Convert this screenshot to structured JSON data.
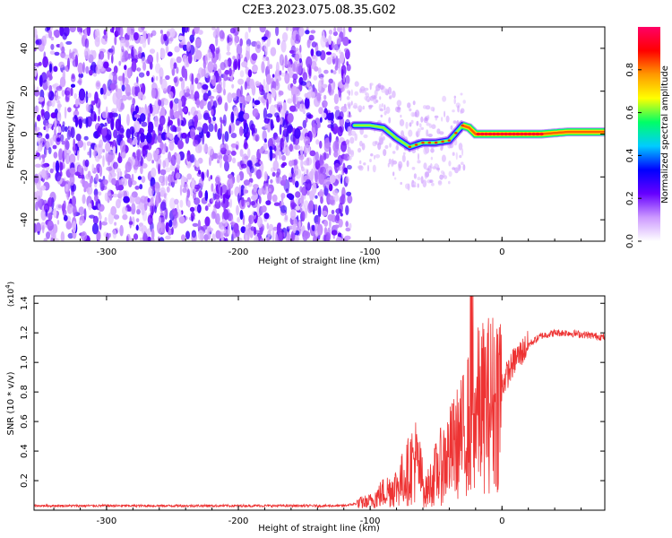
{
  "title": "C2E3.2023.075.08.35.G02",
  "chart_data": [
    {
      "type": "heatmap",
      "xlabel": "Height of straight line (km)",
      "ylabel": "Frequency (Hz)",
      "xlim": [
        -355,
        78
      ],
      "ylim": [
        -50,
        50
      ],
      "xticks": [
        -300,
        -200,
        -100,
        0
      ],
      "yticks": [
        -40,
        -20,
        0,
        20,
        40
      ],
      "colorbar": {
        "label": "Normalized spectral amplitude",
        "range": [
          0.0,
          1.0
        ],
        "ticks": [
          "0.0",
          "0.2",
          "0.4",
          "0.6",
          "0.8"
        ],
        "colors": [
          "#ffffff",
          "#cc99ff",
          "#6600ff",
          "#0000ff",
          "#00ccff",
          "#00ff66",
          "#ffff00",
          "#ff9900",
          "#ff0000",
          "#ff0066"
        ]
      },
      "ridge": {
        "x": [
          -110,
          -100,
          -90,
          -80,
          -70,
          -60,
          -50,
          -40,
          -30,
          -25,
          -20,
          -10,
          0,
          10,
          20,
          30,
          50,
          78
        ],
        "y": [
          4,
          4,
          3,
          -2,
          -6,
          -4,
          -4,
          -3,
          4,
          3,
          0,
          0,
          0,
          0,
          0,
          0,
          1,
          1
        ]
      }
    },
    {
      "type": "line",
      "xlabel": "Height of straight line (km)",
      "ylabel": "SNR (10 * v/v)",
      "ymultiplier": "(x10",
      "ymultiplier_exp": "4",
      "ymultiplier_close": ")",
      "xlim": [
        -355,
        78
      ],
      "ylim": [
        0,
        1.45
      ],
      "xticks": [
        -300,
        -200,
        -100,
        0
      ],
      "yticks": [
        0.2,
        0.4,
        0.6,
        0.8,
        1.0,
        1.2,
        1.4
      ],
      "ytick_labels": [
        "0.2",
        "0.4",
        "0.6",
        "0.8",
        "1.0",
        "1.2",
        "1.4"
      ],
      "color": "#ee3333",
      "x": [
        -355,
        -300,
        -200,
        -120,
        -100,
        -90,
        -80,
        -72,
        -66,
        -62,
        -58,
        -50,
        -40,
        -30,
        -25,
        -22,
        -15,
        -5,
        0,
        10,
        20,
        30,
        40,
        50,
        60,
        70,
        78
      ],
      "y": [
        0.03,
        0.03,
        0.03,
        0.03,
        0.06,
        0.12,
        0.16,
        0.25,
        0.35,
        0.25,
        0.12,
        0.25,
        0.38,
        0.5,
        0.6,
        0.65,
        0.7,
        0.75,
        0.85,
        1.02,
        1.12,
        1.18,
        1.2,
        1.2,
        1.19,
        1.18,
        1.17
      ]
    }
  ]
}
